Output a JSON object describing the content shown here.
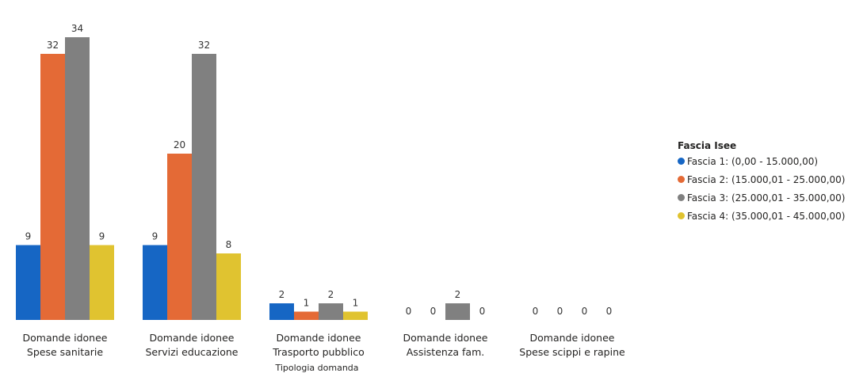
{
  "chart_data": {
    "type": "bar",
    "categories": [
      [
        "Domande idonee",
        "Spese sanitarie"
      ],
      [
        "Domande idonee",
        "Servizi educazione"
      ],
      [
        "Domande idonee",
        "Trasporto pubblico"
      ],
      [
        "Domande idonee",
        "Assistenza fam."
      ],
      [
        "Domande idonee",
        "Spese scippi e rapine"
      ]
    ],
    "series": [
      {
        "name": "Fascia 1: (0,00 - 15.000,00)",
        "color": "#1666C4",
        "values": [
          9,
          9,
          2,
          0,
          0
        ]
      },
      {
        "name": "Fascia 2: (15.000,01 -  25.000,00)",
        "color": "#E46A36",
        "values": [
          32,
          20,
          1,
          0,
          0
        ]
      },
      {
        "name": "Fascia 3: (25.000,01 -  35.000,00)",
        "color": "#808080",
        "values": [
          34,
          32,
          2,
          2,
          0
        ]
      },
      {
        "name": "Fascia 4: (35.000,01 -  45.000,00)",
        "color": "#E0C330",
        "values": [
          9,
          8,
          1,
          0,
          0
        ]
      }
    ],
    "xlabel": "Tipologia domanda",
    "ylabel": "",
    "ylim": [
      0,
      34
    ],
    "grid": false,
    "legend_title": "Fascia Isee",
    "legend_position": "right"
  }
}
